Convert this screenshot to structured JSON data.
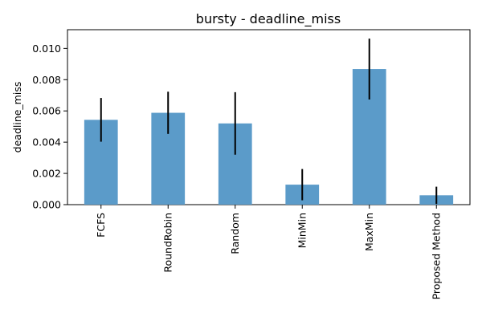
{
  "chart_data": {
    "type": "bar",
    "title": "bursty - deadline_miss",
    "xlabel": "",
    "ylabel": "deadline_miss",
    "categories": [
      "FCFS",
      "RoundRobin",
      "Random",
      "MinMin",
      "MaxMin",
      "Proposed Method"
    ],
    "series": [
      {
        "values": [
          0.00543,
          0.00588,
          0.0052,
          0.00128,
          0.00868,
          0.0006
        ],
        "error": [
          0.0014,
          0.00135,
          0.002,
          0.001,
          0.00195,
          0.00055
        ]
      }
    ],
    "ylim": [
      0,
      0.0112
    ],
    "yticks": [
      "0.000",
      "0.002",
      "0.004",
      "0.006",
      "0.008",
      "0.010"
    ],
    "grid": false,
    "legend": "none",
    "colors": {
      "bar": "#5b9bc9",
      "error_bar": "#000000"
    }
  }
}
